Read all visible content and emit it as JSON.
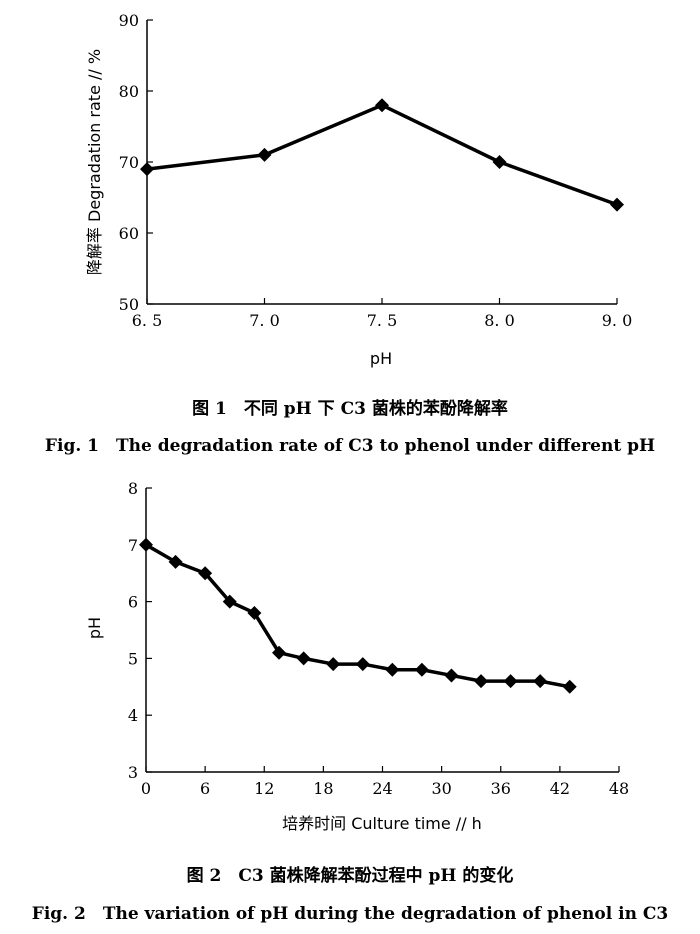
{
  "figures": [
    {
      "caption_cn": "图 1　不同 pH 下 C3 菌株的苯酚降解率",
      "caption_en": "Fig. 1　The degradation rate of C3 to phenol under different pH"
    },
    {
      "caption_cn": "图 2　C3 菌株降解苯酚过程中 pH 的变化",
      "caption_en": "Fig. 2　The variation of pH during the degradation of phenol in C3"
    }
  ],
  "chart_data": [
    {
      "type": "line",
      "xlabel": "pH",
      "ylabel": "降解率 Degradation rate // %",
      "x_ticks": [
        "6. 5",
        "7. 0",
        "7. 5",
        "8. 0",
        "9. 0"
      ],
      "xlim": [
        6.5,
        9.0
      ],
      "ylim": [
        50,
        90
      ],
      "y_ticks": [
        50,
        60,
        70,
        80,
        90
      ],
      "grid": false,
      "marker": "diamond",
      "series": [
        {
          "x": [
            6.5,
            7.0,
            7.5,
            8.0,
            9.0
          ],
          "y": [
            69,
            71,
            78,
            70,
            64
          ]
        }
      ]
    },
    {
      "type": "line",
      "xlabel": "培养时间 Culture time // h",
      "ylabel": "pH",
      "xlim": [
        0,
        48
      ],
      "ylim": [
        3,
        8
      ],
      "x_ticks": [
        0,
        6,
        12,
        18,
        24,
        30,
        36,
        42,
        48
      ],
      "y_ticks": [
        3,
        4,
        5,
        6,
        7,
        8
      ],
      "grid": false,
      "marker": "diamond",
      "series": [
        {
          "x": [
            0,
            3,
            6,
            8.5,
            11,
            13.5,
            16,
            19,
            22,
            25,
            28,
            31,
            34,
            37,
            40,
            43
          ],
          "y": [
            7.0,
            6.7,
            6.5,
            6.0,
            5.8,
            5.1,
            5.0,
            4.9,
            4.9,
            4.8,
            4.8,
            4.7,
            4.6,
            4.6,
            4.6,
            4.5
          ]
        }
      ]
    }
  ]
}
